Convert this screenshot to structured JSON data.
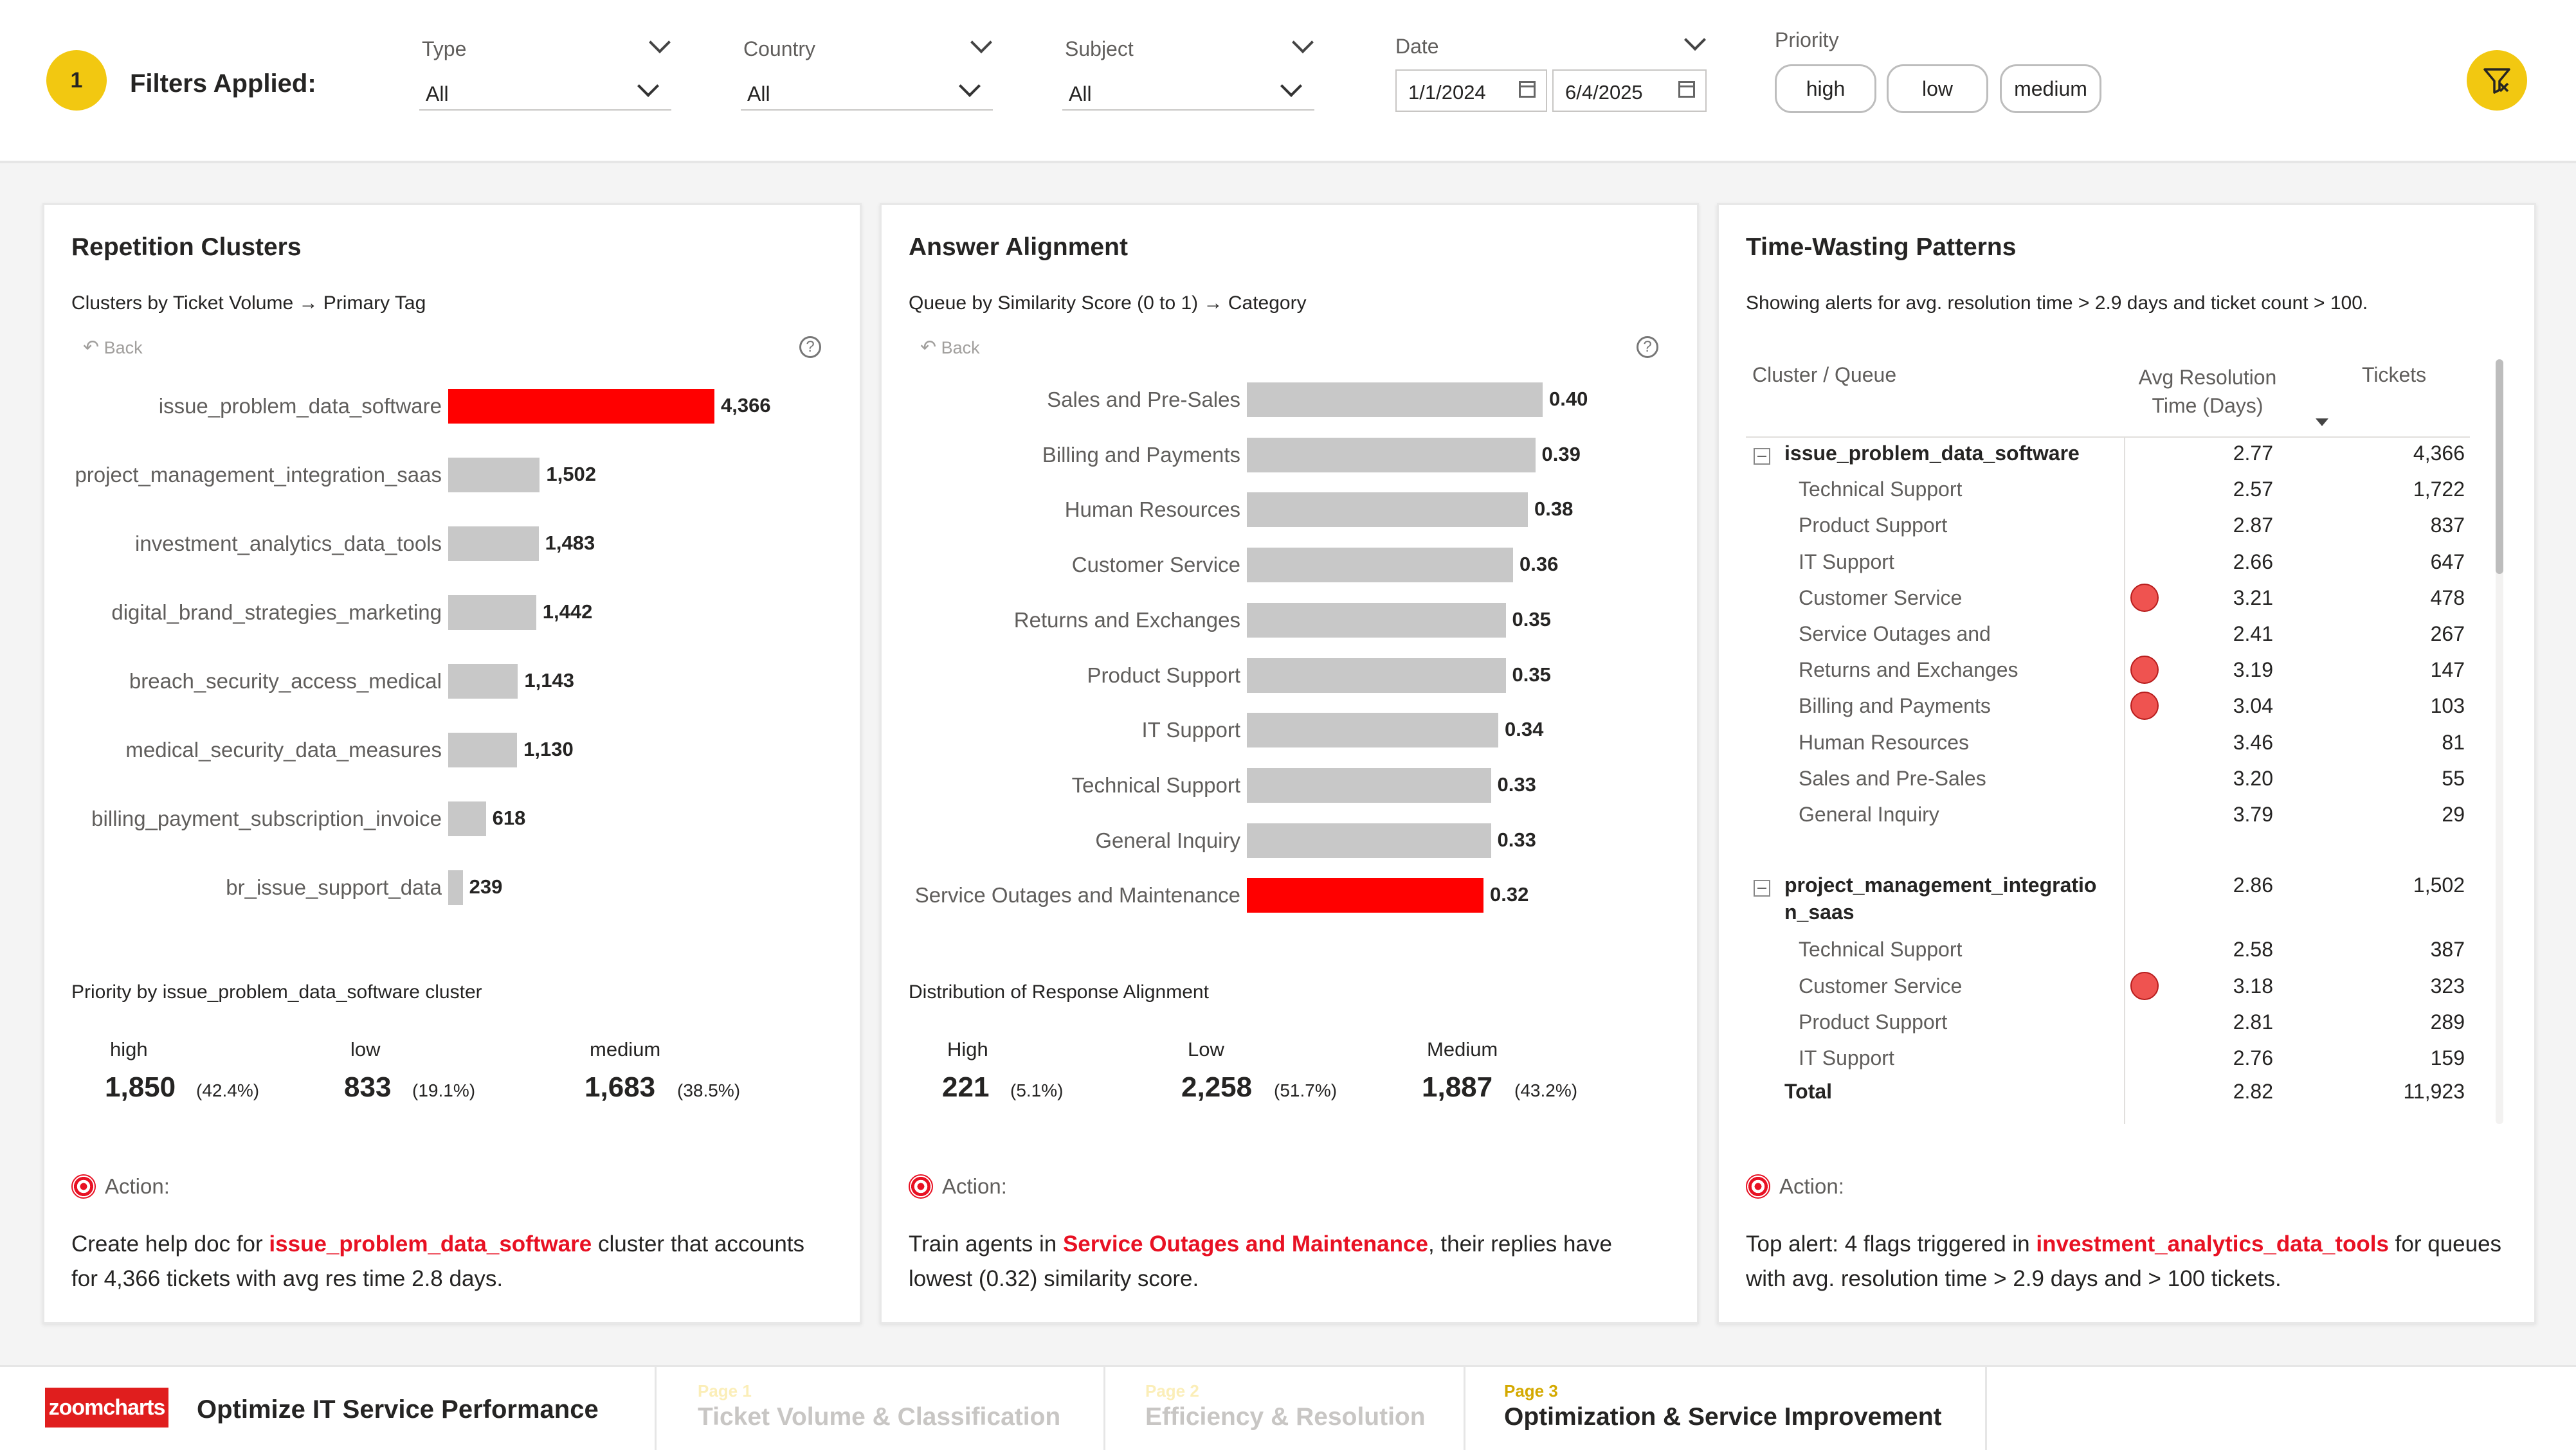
{
  "filters": {
    "count": "1",
    "title": "Filters Applied:",
    "type": {
      "label": "Type",
      "value": "All"
    },
    "country": {
      "label": "Country",
      "value": "All"
    },
    "subject": {
      "label": "Subject",
      "value": "All"
    },
    "date": {
      "label": "Date",
      "from": "1/1/2024",
      "to": "6/4/2025"
    },
    "priority": {
      "label": "Priority",
      "options": [
        "high",
        "low",
        "medium"
      ]
    }
  },
  "colors": {
    "accent": "#f2c811",
    "highlight": "#ff0000",
    "bar": "#c8c8c8",
    "flag": "#ef5350"
  },
  "repetition": {
    "title": "Repetition Clusters",
    "subtitle": "Clusters by Ticket Volume → Primary Tag",
    "back": "Back",
    "help_icon": "?",
    "priority_title": "Priority by issue_problem_data_software cluster",
    "kpis": [
      {
        "name": "high",
        "value": "1,850",
        "pct": "(42.4%)"
      },
      {
        "name": "low",
        "value": "833",
        "pct": "(19.1%)"
      },
      {
        "name": "medium",
        "value": "1,683",
        "pct": "(38.5%)"
      }
    ],
    "action_label": "Action:",
    "action_pre": "Create help doc for ",
    "action_hl": "issue_problem_data_software",
    "action_post": " cluster that accounts for 4,366 tickets with avg res time 2.8 days."
  },
  "alignment": {
    "title": "Answer Alignment",
    "subtitle": "Queue by Similarity Score (0 to 1) → Category",
    "back": "Back",
    "help_icon": "?",
    "dist_title": "Distribution of Response Alignment",
    "kpis": [
      {
        "name": "High",
        "value": "221",
        "pct": "(5.1%)"
      },
      {
        "name": "Low",
        "value": "2,258",
        "pct": "(51.7%)"
      },
      {
        "name": "Medium",
        "value": "1,887",
        "pct": "(43.2%)"
      }
    ],
    "action_label": "Action:",
    "action_pre": "Train agents in ",
    "action_hl": "Service Outages and Maintenance",
    "action_post": ", their replies have lowest (0.32) similarity score."
  },
  "timewaste": {
    "title": "Time-Wasting Patterns",
    "subtitle": "Showing alerts for avg. resolution time > 2.9 days and ticket count > 100.",
    "col_cluster": "Cluster / Queue",
    "col_avg_1": "Avg Resolution",
    "col_avg_2": "Time (Days)",
    "col_tickets": "Tickets",
    "groups": [
      {
        "name": "issue_problem_data_software",
        "avg": "2.77",
        "tickets": "4,366",
        "rows": [
          {
            "name": "Technical Support",
            "avg": "2.57",
            "tickets": "1,722",
            "flag": false
          },
          {
            "name": "Product Support",
            "avg": "2.87",
            "tickets": "837",
            "flag": false
          },
          {
            "name": "IT Support",
            "avg": "2.66",
            "tickets": "647",
            "flag": false
          },
          {
            "name": "Customer Service",
            "avg": "3.21",
            "tickets": "478",
            "flag": true
          },
          {
            "name": "Service Outages and",
            "avg": "2.41",
            "tickets": "267",
            "flag": false
          },
          {
            "name": "Returns and Exchanges",
            "avg": "3.19",
            "tickets": "147",
            "flag": true
          },
          {
            "name": "Billing and Payments",
            "avg": "3.04",
            "tickets": "103",
            "flag": true
          },
          {
            "name": "Human Resources",
            "avg": "3.46",
            "tickets": "81",
            "flag": false
          },
          {
            "name": "Sales and Pre-Sales",
            "avg": "3.20",
            "tickets": "55",
            "flag": false
          },
          {
            "name": "General Inquiry",
            "avg": "3.79",
            "tickets": "29",
            "flag": false
          }
        ]
      },
      {
        "name_1": "project_management_integratio",
        "name_2": "n_saas",
        "avg": "2.86",
        "tickets": "1,502",
        "rows": [
          {
            "name": "Technical Support",
            "avg": "2.58",
            "tickets": "387",
            "flag": false
          },
          {
            "name": "Customer Service",
            "avg": "3.18",
            "tickets": "323",
            "flag": true
          },
          {
            "name": "Product Support",
            "avg": "2.81",
            "tickets": "289",
            "flag": false
          },
          {
            "name": "IT Support",
            "avg": "2.76",
            "tickets": "159",
            "flag": false
          }
        ]
      }
    ],
    "total": {
      "label": "Total",
      "avg": "2.82",
      "tickets": "11,923"
    },
    "action_label": "Action:",
    "action_pre": "Top alert: 4 flags triggered in ",
    "action_hl": "investment_analytics_data_tools",
    "action_post": " for queues with avg. resolution time > 2.9 days and > 100 tickets."
  },
  "chart_data": [
    {
      "type": "bar",
      "orientation": "horizontal",
      "categories": [
        "issue_problem_data_software",
        "project_management_integration_saas",
        "investment_analytics_data_tools",
        "digital_brand_strategies_marketing",
        "breach_security_access_medical",
        "medical_security_data_measures",
        "billing_payment_subscription_invoice",
        "br_issue_support_data"
      ],
      "values": [
        4366,
        1502,
        1483,
        1442,
        1143,
        1130,
        618,
        239
      ],
      "labels": [
        "4,366",
        "1,502",
        "1,483",
        "1,442",
        "1,143",
        "1,130",
        "618",
        "239"
      ],
      "highlight_index": 0,
      "xlim": [
        0,
        4366
      ]
    },
    {
      "type": "bar",
      "orientation": "horizontal",
      "categories": [
        "Sales and Pre-Sales",
        "Billing and Payments",
        "Human Resources",
        "Customer Service",
        "Returns and Exchanges",
        "Product Support",
        "IT Support",
        "Technical Support",
        "General Inquiry",
        "Service Outages and Maintenance"
      ],
      "values": [
        0.4,
        0.39,
        0.38,
        0.36,
        0.35,
        0.35,
        0.34,
        0.33,
        0.33,
        0.32
      ],
      "labels": [
        "0.40",
        "0.39",
        "0.38",
        "0.36",
        "0.35",
        "0.35",
        "0.34",
        "0.33",
        "0.33",
        "0.32"
      ],
      "highlight_index": 9,
      "xlim": [
        0,
        0.4
      ]
    }
  ],
  "footer": {
    "logo": "zoomcharts",
    "title": "Optimize IT Service Performance",
    "tabs": [
      {
        "page": "Page 1",
        "name": "Ticket Volume & Classification",
        "active": false
      },
      {
        "page": "Page 2",
        "name": "Efficiency & Resolution",
        "active": false
      },
      {
        "page": "Page 3",
        "name": "Optimization & Service Improvement",
        "active": true
      }
    ]
  }
}
